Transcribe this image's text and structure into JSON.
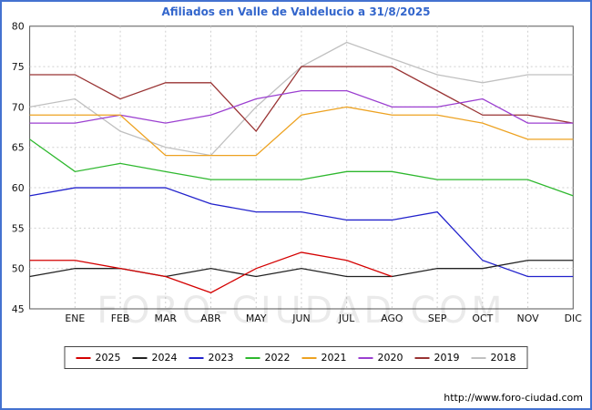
{
  "title": "Afiliados en Valle de Valdelucio a 31/8/2025",
  "watermark": "FORO-CIUDAD.COM",
  "footer_url": "http://www.foro-ciudad.com",
  "colors": {
    "frame_border": "#4472d0",
    "title_text": "#3366cc",
    "gridline": "#cfcfcf",
    "plot_border": "#555555"
  },
  "chart_data": {
    "type": "line",
    "title": "Afiliados en Valle de Valdelucio a 31/8/2025",
    "xlabel": "",
    "ylabel": "",
    "ylim": [
      45,
      80
    ],
    "y_ticks": [
      45,
      50,
      55,
      60,
      65,
      70,
      75,
      80
    ],
    "x_tick_labels": [
      "ENE",
      "FEB",
      "MAR",
      "ABR",
      "MAY",
      "JUN",
      "JUL",
      "AGO",
      "SEP",
      "OCT",
      "NOV",
      "DIC"
    ],
    "grid": true,
    "legend_position": "bottom",
    "note": "Each series has 13 points: the first sits on the left axis edge before ENE; 2025 data ends at AGO (report dated 31/8/2025).",
    "series": [
      {
        "name": "2025",
        "color": "#d40000",
        "values": [
          51,
          51,
          50,
          49,
          47,
          50,
          52,
          51,
          49,
          null,
          null,
          null,
          null
        ]
      },
      {
        "name": "2024",
        "color": "#222222",
        "values": [
          49,
          50,
          50,
          49,
          50,
          49,
          50,
          49,
          49,
          50,
          50,
          51,
          51
        ]
      },
      {
        "name": "2023",
        "color": "#2222cc",
        "values": [
          59,
          60,
          60,
          60,
          58,
          57,
          57,
          56,
          56,
          57,
          51,
          49,
          49
        ]
      },
      {
        "name": "2022",
        "color": "#2eb82e",
        "values": [
          66,
          62,
          63,
          62,
          61,
          61,
          61,
          62,
          62,
          61,
          61,
          61,
          59
        ]
      },
      {
        "name": "2021",
        "color": "#eda221",
        "values": [
          69,
          69,
          69,
          64,
          64,
          64,
          69,
          70,
          69,
          69,
          68,
          66,
          66
        ]
      },
      {
        "name": "2020",
        "color": "#9b3fd0",
        "values": [
          68,
          68,
          69,
          68,
          69,
          71,
          72,
          72,
          70,
          70,
          71,
          68,
          68
        ]
      },
      {
        "name": "2019",
        "color": "#993333",
        "values": [
          74,
          74,
          71,
          73,
          73,
          67,
          75,
          75,
          75,
          72,
          69,
          69,
          68
        ]
      },
      {
        "name": "2018",
        "color": "#c0c0c0",
        "values": [
          70,
          71,
          67,
          65,
          64,
          70,
          75,
          78,
          76,
          74,
          73,
          74,
          74
        ]
      }
    ]
  }
}
